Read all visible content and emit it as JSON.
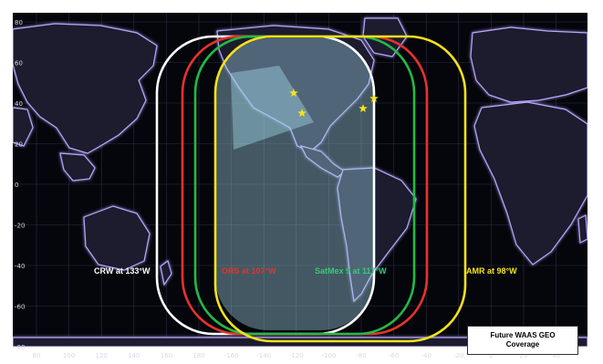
{
  "colors": {
    "ocean": "#05060c",
    "land": "#1d1f2e",
    "land_glow": "#b9a6ff",
    "grid": "#2a2c40",
    "crw": "#ffffff",
    "crw_label": "#ffffff",
    "ops": "#e8332b",
    "ops_label": "#e8332b",
    "satmex": "#22bb44",
    "satmex_label": "#33cc77",
    "amr": "#f5e21a",
    "amr_label": "#f5e21a",
    "coverage_fill": "#9fd4e6"
  },
  "axes": {
    "y_ticks": [
      "80",
      "60",
      "40",
      "20",
      "0",
      "-20",
      "-40",
      "-60",
      "-80"
    ],
    "x_ticks": [
      "80",
      "100",
      "120",
      "140",
      "160",
      "180",
      "-160",
      "-140",
      "-120",
      "-100",
      "-80",
      "-60",
      "-40",
      "-20",
      "0",
      "20",
      "40"
    ]
  },
  "satellites": [
    {
      "id": "crw",
      "label": "CRW at 133°W"
    },
    {
      "id": "ops",
      "label": "ORS at 107°W"
    },
    {
      "id": "satmex",
      "label": "SatMex 9 at 117°W"
    },
    {
      "id": "amr",
      "label": "AMR at 98°W"
    }
  ],
  "stations": [
    {
      "icon": "star-icon"
    },
    {
      "icon": "star-icon"
    },
    {
      "icon": "star-icon"
    },
    {
      "icon": "star-icon"
    }
  ],
  "legend": {
    "line1": "Future WAAS GEO",
    "line2": "Coverage"
  }
}
